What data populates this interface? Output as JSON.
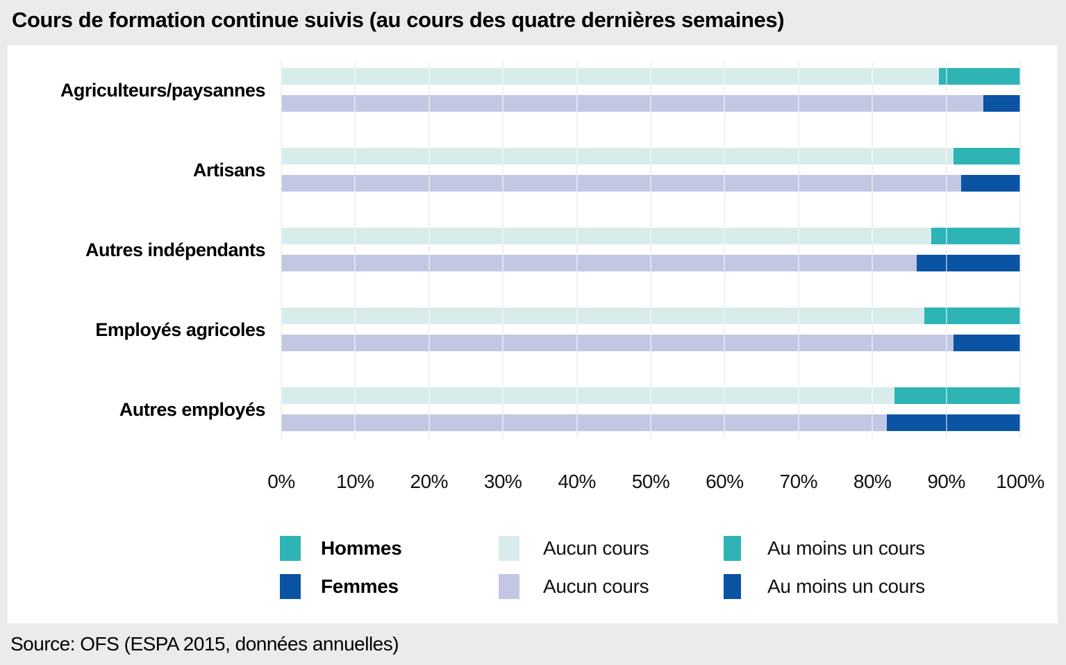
{
  "title": "Cours de formation continue suivis (au cours des quatre dernières semaines)",
  "source": "Source: OFS (ESPA 2015, données annuelles)",
  "colors": {
    "hommes_au_moins_un_cours": "#2eb4b4",
    "hommes_aucun_cours": "#d8eceb",
    "femmes_au_moins_un_cours": "#0b53a3",
    "femmes_aucun_cours": "#c3c7e3",
    "gridline": "#e2e2e2",
    "panel_background": "#ffffff",
    "page_background": "#ebebeb"
  },
  "chart_data": {
    "type": "bar",
    "orientation": "horizontal-stacked",
    "title": "Cours de formation continue suivis (au cours des quatre dernières semaines)",
    "categories": [
      "Agriculteurs/paysannes",
      "Artisans",
      "Autres indépendants",
      "Employés agricoles",
      "Autres employés"
    ],
    "series": [
      {
        "name": "Hommes",
        "segments": [
          {
            "label": "Aucun cours",
            "color": "#d8eceb",
            "values": [
              89,
              91,
              88,
              87,
              83
            ]
          },
          {
            "label": "Au moins un cours",
            "color": "#2eb4b4",
            "values": [
              11,
              9,
              12,
              13,
              17
            ]
          }
        ]
      },
      {
        "name": "Femmes",
        "segments": [
          {
            "label": "Aucun cours",
            "color": "#c3c7e3",
            "values": [
              95,
              92,
              86,
              91,
              82
            ]
          },
          {
            "label": "Au moins un cours",
            "color": "#0b53a3",
            "values": [
              5,
              8,
              14,
              9,
              18
            ]
          }
        ]
      }
    ],
    "x_ticks": [
      "0%",
      "10%",
      "20%",
      "30%",
      "40%",
      "50%",
      "60%",
      "70%",
      "80%",
      "90%",
      "100%"
    ],
    "xlim": [
      0,
      100
    ],
    "grid": "vertical",
    "legend_position": "below"
  },
  "legend": {
    "gender": [
      {
        "label": "Hommes",
        "color": "#2eb4b4"
      },
      {
        "label": "Femmes",
        "color": "#0b53a3"
      }
    ],
    "aucun": [
      {
        "label": "Aucun cours",
        "color": "#d8eceb"
      },
      {
        "label": "Aucun cours",
        "color": "#c3c7e3"
      }
    ],
    "au_moins": [
      {
        "label": "Au moins un cours",
        "color": "#2eb4b4"
      },
      {
        "label": "Au moins un cours",
        "color": "#0b53a3"
      }
    ]
  }
}
